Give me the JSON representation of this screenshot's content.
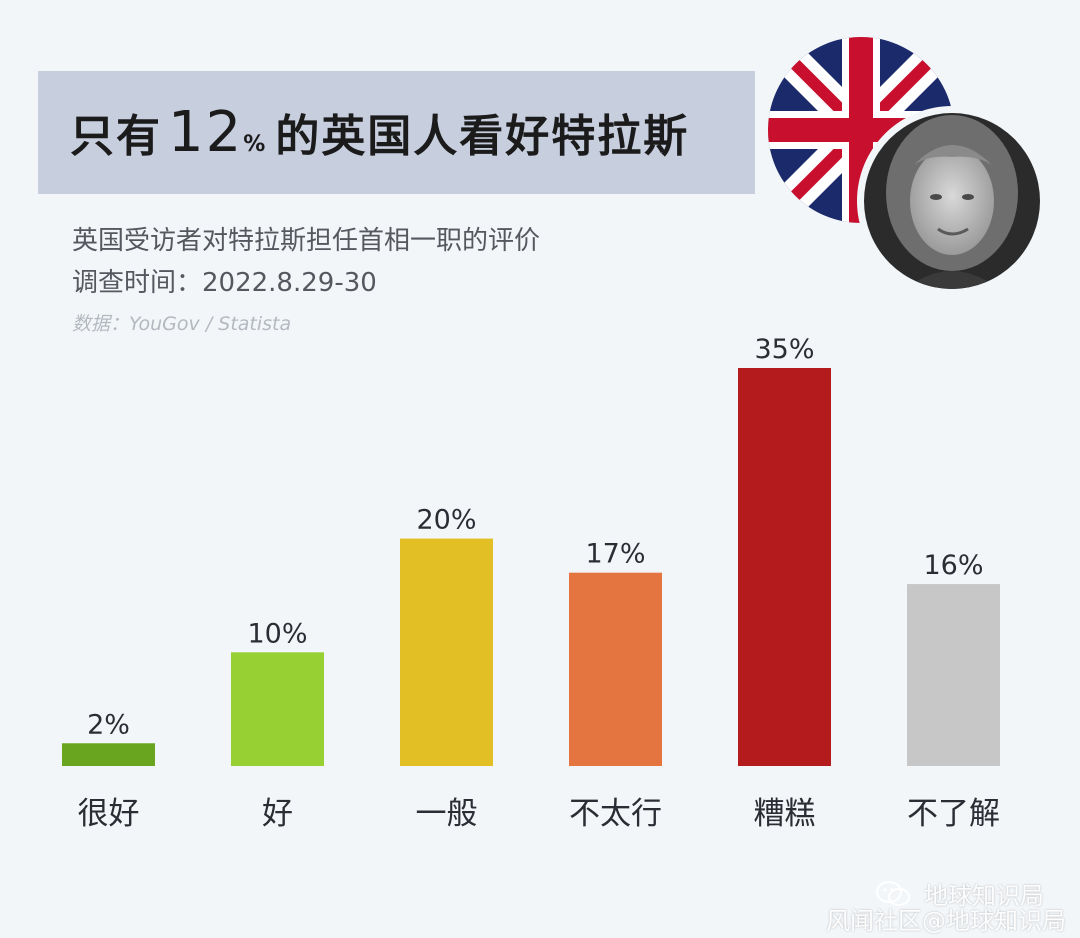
{
  "header": {
    "title_prefix": "只有",
    "title_number": "12",
    "title_percent": "%",
    "title_suffix": "的英国人看好特拉斯",
    "subtitle": "英国受访者对特拉斯担任首相一职的评价",
    "date": "调查时间：2022.8.29-30",
    "source": "数据：YouGov / Statista"
  },
  "watermark": {
    "line1": "地球知识局",
    "line2": "风闻社区@地球知识局"
  },
  "colors": {
    "background": "#f3f6f9",
    "title_band": "#c7cede",
    "label_text": "#2a2d33"
  },
  "icons": [
    "uk-flag-icon",
    "portrait-image",
    "wechat-icon"
  ],
  "chart_data": {
    "type": "bar",
    "categories": [
      "很好",
      "好",
      "一般",
      "不太行",
      "糟糕",
      "不了解"
    ],
    "values": [
      2,
      10,
      20,
      17,
      35,
      16
    ],
    "value_labels": [
      "2%",
      "10%",
      "20%",
      "17%",
      "35%",
      "16%"
    ],
    "colors": [
      "#6aa51f",
      "#97d032",
      "#e2c025",
      "#e47440",
      "#b41b1d",
      "#c7c7c7"
    ],
    "ylim": [
      0,
      35
    ],
    "grid": false,
    "legend": "none"
  }
}
